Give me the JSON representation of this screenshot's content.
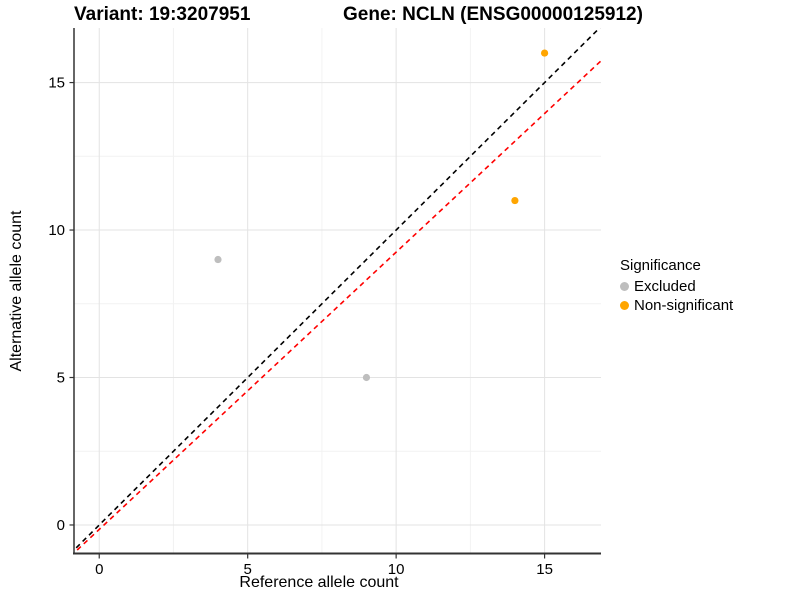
{
  "colors": {
    "background": "#FFFFFF",
    "grid_major": "#E3E3E3",
    "grid_minor": "#F2F2F2",
    "axis_line": "#333333",
    "tick_text": "#000000",
    "excluded": "#BEBEBE",
    "non_significant": "#FFA500",
    "identity_line": "#000000",
    "expected_line": "#FF0000"
  },
  "chart_data": {
    "type": "scatter",
    "title_left": "Variant: 19:3207951",
    "title_right": "Gene: NCLN (ENSG00000125912)",
    "xlabel": "Reference allele count",
    "ylabel": "Alternative allele count",
    "xlim": [
      -0.85,
      16.9
    ],
    "ylim": [
      -0.95,
      16.85
    ],
    "x_ticks": [
      0,
      5,
      10,
      15
    ],
    "x_minor_ticks": [
      2.5,
      7.5,
      12.5
    ],
    "y_ticks": [
      0,
      5,
      10,
      15
    ],
    "y_minor_ticks": [
      2.5,
      7.5,
      12.5
    ],
    "grid": "major and minor gridlines, light gray on white",
    "series": [
      {
        "name": "Excluded",
        "color": "#BEBEBE",
        "points": [
          [
            4,
            9
          ],
          [
            9,
            5
          ]
        ]
      },
      {
        "name": "Non-significant",
        "color": "#FFA500",
        "points": [
          [
            14,
            11
          ],
          [
            15,
            16
          ]
        ]
      }
    ],
    "ab_lines": [
      {
        "name": "identity",
        "color": "#000000",
        "dashed": true,
        "slope": 1,
        "intercept": 0
      },
      {
        "name": "expected",
        "color": "#FF0000",
        "dashed": true,
        "slope": 0.94,
        "intercept": -0.15
      }
    ],
    "legend": {
      "title": "Significance",
      "position": "right",
      "items": [
        {
          "label": "Excluded",
          "color": "#BEBEBE"
        },
        {
          "label": "Non-significant",
          "color": "#FFA500"
        }
      ]
    }
  }
}
